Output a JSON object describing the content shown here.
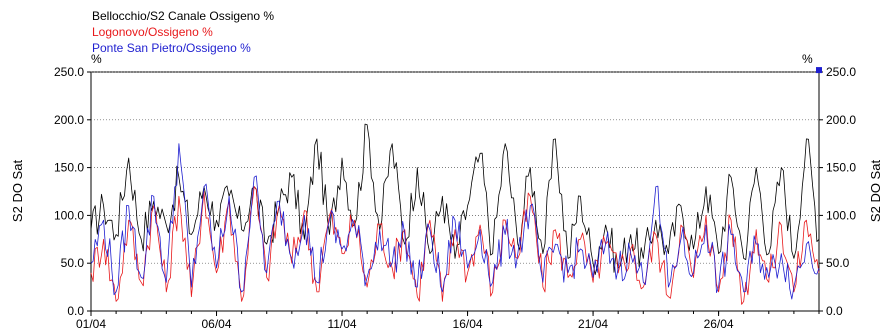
{
  "chart_data": {
    "type": "line",
    "legend": [
      {
        "name": "Bellocchio/S2 Canale Ossigeno %",
        "color": "#000000"
      },
      {
        "name": "Logonovo/Ossigeno %",
        "color": "#e8191b"
      },
      {
        "name": "Ponte San Pietro/Ossigeno %",
        "color": "#1f1fd0"
      }
    ],
    "unit_left": "%",
    "unit_right": "%",
    "ylabel_left": "S2 DO Sat",
    "ylabel_right": "S2 DO Sat",
    "ylim": [
      0,
      250
    ],
    "y_ticks": [
      "0.0",
      "50.0",
      "100.0",
      "150.0",
      "200.0",
      "250.0"
    ],
    "x_ticks": [
      "01/04",
      "06/04",
      "11/04",
      "16/04",
      "21/04",
      "26/04"
    ],
    "x_range_days": [
      1,
      30
    ],
    "grid": "horizontal dotted",
    "series": [
      {
        "name": "Bellocchio/S2 Canale Ossigeno %",
        "color": "#000000",
        "x": [
          1,
          1.5,
          2,
          2.5,
          3,
          3.5,
          4,
          4.5,
          5,
          5.5,
          6,
          6.5,
          7,
          7.5,
          8,
          8.5,
          9,
          9.5,
          10,
          10.5,
          11,
          11.5,
          12,
          12.5,
          13,
          13.5,
          14,
          14.5,
          15,
          15.5,
          16,
          16.5,
          17,
          17.5,
          18,
          18.5,
          19,
          19.5,
          20,
          20.5,
          21,
          21.5,
          22,
          22.5,
          23,
          23.5,
          24,
          24.5,
          25,
          25.5,
          26,
          26.5,
          27,
          27.5,
          28,
          28.5,
          29,
          29.5,
          30
        ],
        "values": [
          85,
          110,
          80,
          160,
          75,
          115,
          90,
          140,
          80,
          130,
          95,
          120,
          85,
          130,
          70,
          110,
          140,
          75,
          180,
          80,
          160,
          90,
          195,
          85,
          175,
          70,
          150,
          60,
          120,
          55,
          110,
          165,
          60,
          175,
          70,
          150,
          60,
          180,
          55,
          120,
          50,
          90,
          45,
          80,
          55,
          95,
          60,
          110,
          65,
          130,
          60,
          140,
          55,
          150,
          60,
          150,
          55,
          180,
          75
        ]
      },
      {
        "name": "Logonovo/Ossigeno %",
        "color": "#e8191b",
        "x": [
          1,
          1.5,
          2,
          2.5,
          3,
          3.5,
          4,
          4.5,
          5,
          5.5,
          6,
          6.5,
          7,
          7.5,
          8,
          8.5,
          9,
          9.5,
          10,
          10.5,
          11,
          11.5,
          12,
          12.5,
          13,
          13.5,
          14,
          14.5,
          15,
          15.5,
          16,
          16.5,
          17,
          17.5,
          18,
          18.5,
          19,
          19.5,
          20,
          20.5,
          21,
          21.5,
          22,
          22.5,
          23,
          23.5,
          24,
          24.5,
          25,
          25.5,
          26,
          26.5,
          27,
          27.5,
          28,
          28.5,
          29,
          29.5,
          30
        ],
        "values": [
          40,
          75,
          10,
          95,
          30,
          110,
          20,
          120,
          15,
          125,
          40,
          115,
          10,
          130,
          35,
          110,
          50,
          105,
          20,
          100,
          60,
          95,
          25,
          90,
          45,
          85,
          15,
          95,
          10,
          85,
          40,
          90,
          20,
          95,
          55,
          120,
          25,
          85,
          35,
          75,
          30,
          70,
          40,
          65,
          25,
          80,
          15,
          90,
          35,
          100,
          20,
          95,
          10,
          85,
          30,
          90,
          20,
          95,
          40
        ]
      },
      {
        "name": "Ponte San Pietro/Ossigeno %",
        "color": "#1f1fd0",
        "x": [
          1,
          1.5,
          2,
          2.5,
          3,
          3.5,
          4,
          4.5,
          5,
          5.5,
          6,
          6.5,
          7,
          7.5,
          8,
          8.5,
          9,
          9.5,
          10,
          10.5,
          11,
          11.5,
          12,
          12.5,
          13,
          13.5,
          14,
          14.5,
          15,
          15.5,
          16,
          16.5,
          17,
          17.5,
          18,
          18.5,
          19,
          19.5,
          20,
          20.5,
          21,
          21.5,
          22,
          22.5,
          23,
          23.5,
          24,
          24.5,
          25,
          25.5,
          26,
          26.5,
          27,
          27.5,
          28,
          28.5,
          29,
          29.5,
          30
        ],
        "values": [
          50,
          95,
          20,
          110,
          35,
          120,
          30,
          175,
          25,
          130,
          45,
          120,
          20,
          140,
          40,
          115,
          55,
          100,
          30,
          95,
          65,
          90,
          35,
          85,
          50,
          80,
          25,
          85,
          20,
          95,
          45,
          85,
          30,
          80,
          60,
          110,
          30,
          70,
          40,
          65,
          35,
          70,
          45,
          60,
          30,
          130,
          25,
          75,
          40,
          90,
          25,
          80,
          20,
          70,
          35,
          60,
          25,
          70,
          45
        ]
      }
    ],
    "marker": {
      "x": 30,
      "y": 252,
      "color": "#1f1fd0"
    }
  }
}
